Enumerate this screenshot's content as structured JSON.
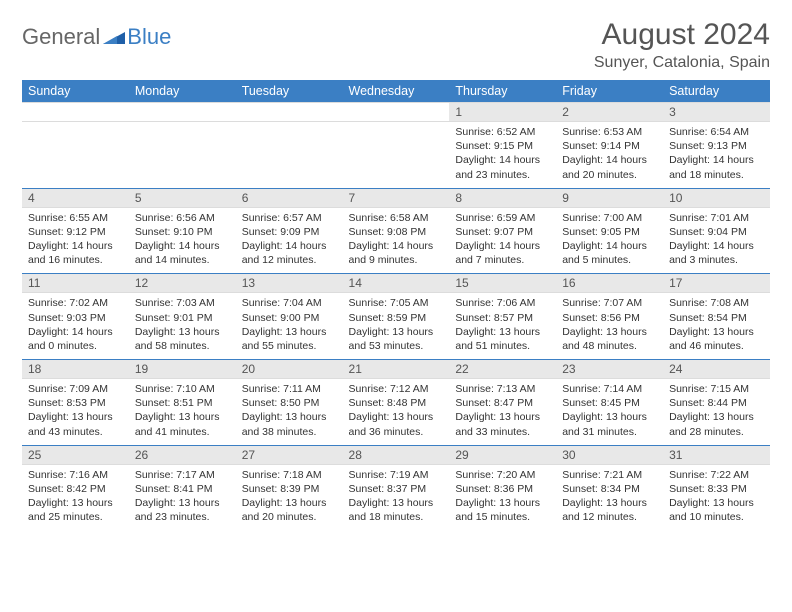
{
  "logo": {
    "general": "General",
    "blue": "Blue",
    "icon_color": "#3b7fc4"
  },
  "title": "August 2024",
  "location": "Sunyer, Catalonia, Spain",
  "colors": {
    "header_bg": "#3b7fc4",
    "header_text": "#ffffff",
    "daynum_bg": "#e8e8e8",
    "row_border": "#3b7fc4",
    "body_text": "#333333",
    "title_text": "#555555"
  },
  "typography": {
    "title_fontsize": 30,
    "location_fontsize": 16,
    "header_fontsize": 12.5,
    "daynum_fontsize": 12,
    "body_fontsize": 10.5
  },
  "day_headers": [
    "Sunday",
    "Monday",
    "Tuesday",
    "Wednesday",
    "Thursday",
    "Friday",
    "Saturday"
  ],
  "weeks": [
    [
      {
        "n": "",
        "sr": "",
        "ss": "",
        "dl": ""
      },
      {
        "n": "",
        "sr": "",
        "ss": "",
        "dl": ""
      },
      {
        "n": "",
        "sr": "",
        "ss": "",
        "dl": ""
      },
      {
        "n": "",
        "sr": "",
        "ss": "",
        "dl": ""
      },
      {
        "n": "1",
        "sr": "Sunrise: 6:52 AM",
        "ss": "Sunset: 9:15 PM",
        "dl": "Daylight: 14 hours and 23 minutes."
      },
      {
        "n": "2",
        "sr": "Sunrise: 6:53 AM",
        "ss": "Sunset: 9:14 PM",
        "dl": "Daylight: 14 hours and 20 minutes."
      },
      {
        "n": "3",
        "sr": "Sunrise: 6:54 AM",
        "ss": "Sunset: 9:13 PM",
        "dl": "Daylight: 14 hours and 18 minutes."
      }
    ],
    [
      {
        "n": "4",
        "sr": "Sunrise: 6:55 AM",
        "ss": "Sunset: 9:12 PM",
        "dl": "Daylight: 14 hours and 16 minutes."
      },
      {
        "n": "5",
        "sr": "Sunrise: 6:56 AM",
        "ss": "Sunset: 9:10 PM",
        "dl": "Daylight: 14 hours and 14 minutes."
      },
      {
        "n": "6",
        "sr": "Sunrise: 6:57 AM",
        "ss": "Sunset: 9:09 PM",
        "dl": "Daylight: 14 hours and 12 minutes."
      },
      {
        "n": "7",
        "sr": "Sunrise: 6:58 AM",
        "ss": "Sunset: 9:08 PM",
        "dl": "Daylight: 14 hours and 9 minutes."
      },
      {
        "n": "8",
        "sr": "Sunrise: 6:59 AM",
        "ss": "Sunset: 9:07 PM",
        "dl": "Daylight: 14 hours and 7 minutes."
      },
      {
        "n": "9",
        "sr": "Sunrise: 7:00 AM",
        "ss": "Sunset: 9:05 PM",
        "dl": "Daylight: 14 hours and 5 minutes."
      },
      {
        "n": "10",
        "sr": "Sunrise: 7:01 AM",
        "ss": "Sunset: 9:04 PM",
        "dl": "Daylight: 14 hours and 3 minutes."
      }
    ],
    [
      {
        "n": "11",
        "sr": "Sunrise: 7:02 AM",
        "ss": "Sunset: 9:03 PM",
        "dl": "Daylight: 14 hours and 0 minutes."
      },
      {
        "n": "12",
        "sr": "Sunrise: 7:03 AM",
        "ss": "Sunset: 9:01 PM",
        "dl": "Daylight: 13 hours and 58 minutes."
      },
      {
        "n": "13",
        "sr": "Sunrise: 7:04 AM",
        "ss": "Sunset: 9:00 PM",
        "dl": "Daylight: 13 hours and 55 minutes."
      },
      {
        "n": "14",
        "sr": "Sunrise: 7:05 AM",
        "ss": "Sunset: 8:59 PM",
        "dl": "Daylight: 13 hours and 53 minutes."
      },
      {
        "n": "15",
        "sr": "Sunrise: 7:06 AM",
        "ss": "Sunset: 8:57 PM",
        "dl": "Daylight: 13 hours and 51 minutes."
      },
      {
        "n": "16",
        "sr": "Sunrise: 7:07 AM",
        "ss": "Sunset: 8:56 PM",
        "dl": "Daylight: 13 hours and 48 minutes."
      },
      {
        "n": "17",
        "sr": "Sunrise: 7:08 AM",
        "ss": "Sunset: 8:54 PM",
        "dl": "Daylight: 13 hours and 46 minutes."
      }
    ],
    [
      {
        "n": "18",
        "sr": "Sunrise: 7:09 AM",
        "ss": "Sunset: 8:53 PM",
        "dl": "Daylight: 13 hours and 43 minutes."
      },
      {
        "n": "19",
        "sr": "Sunrise: 7:10 AM",
        "ss": "Sunset: 8:51 PM",
        "dl": "Daylight: 13 hours and 41 minutes."
      },
      {
        "n": "20",
        "sr": "Sunrise: 7:11 AM",
        "ss": "Sunset: 8:50 PM",
        "dl": "Daylight: 13 hours and 38 minutes."
      },
      {
        "n": "21",
        "sr": "Sunrise: 7:12 AM",
        "ss": "Sunset: 8:48 PM",
        "dl": "Daylight: 13 hours and 36 minutes."
      },
      {
        "n": "22",
        "sr": "Sunrise: 7:13 AM",
        "ss": "Sunset: 8:47 PM",
        "dl": "Daylight: 13 hours and 33 minutes."
      },
      {
        "n": "23",
        "sr": "Sunrise: 7:14 AM",
        "ss": "Sunset: 8:45 PM",
        "dl": "Daylight: 13 hours and 31 minutes."
      },
      {
        "n": "24",
        "sr": "Sunrise: 7:15 AM",
        "ss": "Sunset: 8:44 PM",
        "dl": "Daylight: 13 hours and 28 minutes."
      }
    ],
    [
      {
        "n": "25",
        "sr": "Sunrise: 7:16 AM",
        "ss": "Sunset: 8:42 PM",
        "dl": "Daylight: 13 hours and 25 minutes."
      },
      {
        "n": "26",
        "sr": "Sunrise: 7:17 AM",
        "ss": "Sunset: 8:41 PM",
        "dl": "Daylight: 13 hours and 23 minutes."
      },
      {
        "n": "27",
        "sr": "Sunrise: 7:18 AM",
        "ss": "Sunset: 8:39 PM",
        "dl": "Daylight: 13 hours and 20 minutes."
      },
      {
        "n": "28",
        "sr": "Sunrise: 7:19 AM",
        "ss": "Sunset: 8:37 PM",
        "dl": "Daylight: 13 hours and 18 minutes."
      },
      {
        "n": "29",
        "sr": "Sunrise: 7:20 AM",
        "ss": "Sunset: 8:36 PM",
        "dl": "Daylight: 13 hours and 15 minutes."
      },
      {
        "n": "30",
        "sr": "Sunrise: 7:21 AM",
        "ss": "Sunset: 8:34 PM",
        "dl": "Daylight: 13 hours and 12 minutes."
      },
      {
        "n": "31",
        "sr": "Sunrise: 7:22 AM",
        "ss": "Sunset: 8:33 PM",
        "dl": "Daylight: 13 hours and 10 minutes."
      }
    ]
  ]
}
